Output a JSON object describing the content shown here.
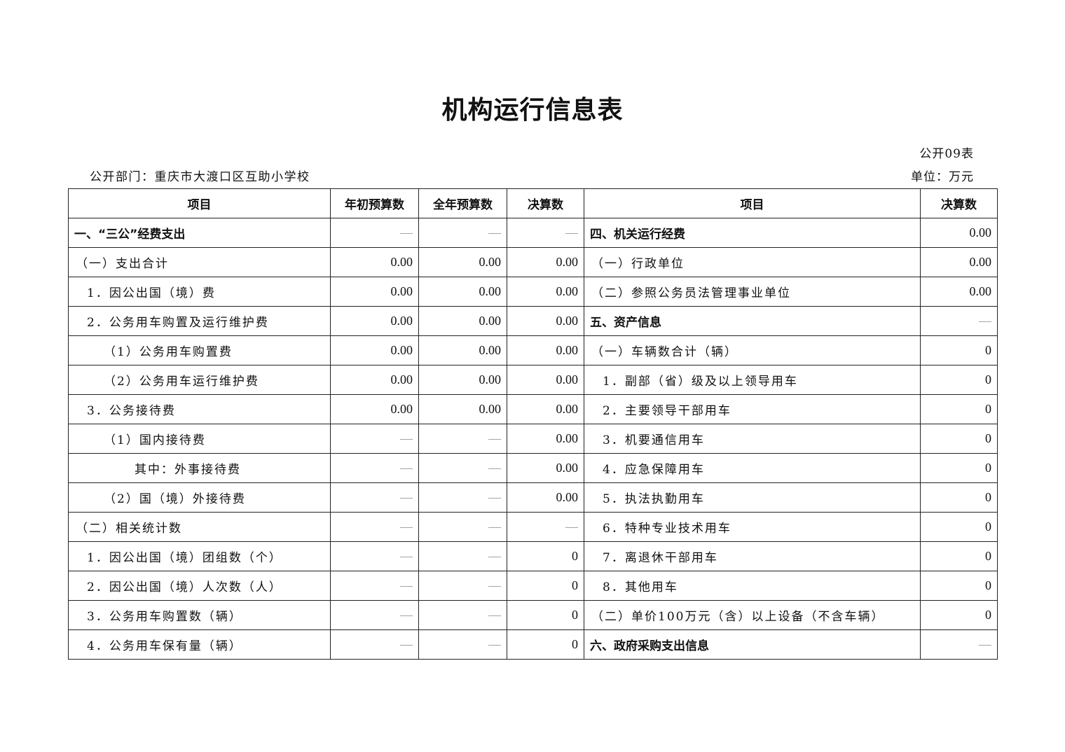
{
  "title": "机构运行信息表",
  "form_no": "公开09表",
  "unit": "单位：万元",
  "department": "公开部门：重庆市大渡口区互助小学校",
  "headers": [
    "项目",
    "年初预算数",
    "全年预算数",
    "决算数",
    "项目",
    "决算数"
  ],
  "rows": [
    {
      "left": {
        "label": "一、“三公”经费支出",
        "level": 0,
        "bold": true,
        "values": [
          "—",
          "—",
          "—"
        ]
      },
      "right": {
        "label": "四、机关运行经费",
        "level": 0,
        "bold": true,
        "value": "0.00"
      }
    },
    {
      "left": {
        "label": "（一）支出合计",
        "level": 1,
        "values": [
          "0.00",
          "0.00",
          "0.00"
        ]
      },
      "right": {
        "label": "（一）行政单位",
        "level": 1,
        "value": "0.00"
      }
    },
    {
      "left": {
        "label": "1．因公出国（境）费",
        "level": 2,
        "values": [
          "0.00",
          "0.00",
          "0.00"
        ]
      },
      "right": {
        "label": "（二）参照公务员法管理事业单位",
        "level": 1,
        "value": "0.00"
      }
    },
    {
      "left": {
        "label": "2．公务用车购置及运行维护费",
        "level": 2,
        "values": [
          "0.00",
          "0.00",
          "0.00"
        ]
      },
      "right": {
        "label": "五、资产信息",
        "level": 0,
        "bold": true,
        "value": "—"
      }
    },
    {
      "left": {
        "label": "（1）公务用车购置费",
        "level": 3,
        "values": [
          "0.00",
          "0.00",
          "0.00"
        ]
      },
      "right": {
        "label": "（一）车辆数合计（辆）",
        "level": 1,
        "value": "0"
      }
    },
    {
      "left": {
        "label": "（2）公务用车运行维护费",
        "level": 3,
        "values": [
          "0.00",
          "0.00",
          "0.00"
        ]
      },
      "right": {
        "label": "1．副部（省）级及以上领导用车",
        "level": 2,
        "value": "0"
      }
    },
    {
      "left": {
        "label": "3．公务接待费",
        "level": 2,
        "values": [
          "0.00",
          "0.00",
          "0.00"
        ]
      },
      "right": {
        "label": "2．主要领导干部用车",
        "level": 2,
        "value": "0"
      }
    },
    {
      "left": {
        "label": "（1）国内接待费",
        "level": 3,
        "values": [
          "—",
          "—",
          "0.00"
        ]
      },
      "right": {
        "label": "3．机要通信用车",
        "level": 2,
        "value": "0"
      }
    },
    {
      "left": {
        "label": "其中：外事接待费",
        "level": 4,
        "values": [
          "—",
          "—",
          "0.00"
        ]
      },
      "right": {
        "label": "4．应急保障用车",
        "level": 2,
        "value": "0"
      }
    },
    {
      "left": {
        "label": "（2）国（境）外接待费",
        "level": 3,
        "values": [
          "—",
          "—",
          "0.00"
        ]
      },
      "right": {
        "label": "5．执法执勤用车",
        "level": 2,
        "value": "0"
      }
    },
    {
      "left": {
        "label": "（二）相关统计数",
        "level": 1,
        "values": [
          "—",
          "—",
          "—"
        ]
      },
      "right": {
        "label": "6．特种专业技术用车",
        "level": 2,
        "value": "0"
      }
    },
    {
      "left": {
        "label": "1．因公出国（境）团组数（个）",
        "level": 2,
        "values": [
          "—",
          "—",
          "0"
        ]
      },
      "right": {
        "label": "7．离退休干部用车",
        "level": 2,
        "value": "0"
      }
    },
    {
      "left": {
        "label": "2．因公出国（境）人次数（人）",
        "level": 2,
        "values": [
          "—",
          "—",
          "0"
        ]
      },
      "right": {
        "label": "8．其他用车",
        "level": 2,
        "value": "0"
      }
    },
    {
      "left": {
        "label": "3．公务用车购置数（辆）",
        "level": 2,
        "values": [
          "—",
          "—",
          "0"
        ]
      },
      "right": {
        "label": "（二）单价100万元（含）以上设备（不含车辆）",
        "level": 1,
        "value": "0"
      }
    },
    {
      "left": {
        "label": "4．公务用车保有量（辆）",
        "level": 2,
        "values": [
          "—",
          "—",
          "0"
        ]
      },
      "right": {
        "label": "六、政府采购支出信息",
        "level": 0,
        "bold": true,
        "value": "—"
      }
    }
  ]
}
